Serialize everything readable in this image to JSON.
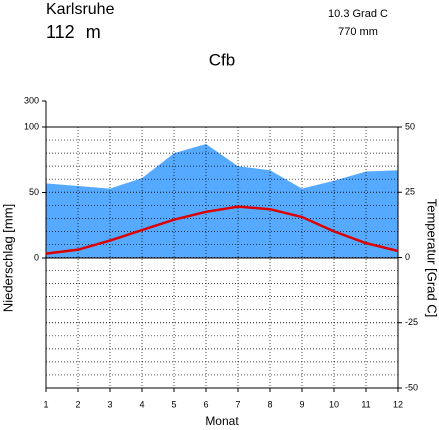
{
  "chart_data": {
    "type": "climate",
    "title": "Karlsruhe",
    "subtitle": "112 m",
    "annotations": [
      "10.3 Grad C",
      "770 mm",
      "Cfb"
    ],
    "x_label": "Monat",
    "y_label": "Niederschlag [mm]",
    "y2_label": "Temperatur [Grad C]",
    "x": [
      1,
      2,
      3,
      4,
      5,
      6,
      7,
      8,
      9,
      10,
      11,
      12
    ],
    "xlim": [
      1,
      12
    ],
    "xticks": [
      1,
      2,
      3,
      4,
      5,
      6,
      7,
      8,
      9,
      10,
      11,
      12
    ],
    "ylim": [
      0,
      300
    ],
    "yticks": [
      0,
      50,
      100,
      300
    ],
    "y2lim": [
      -50,
      50
    ],
    "y2ticks": [
      -50,
      -25,
      0,
      25,
      50
    ],
    "grid": true,
    "series": [
      {
        "type": "area",
        "color": "#55aaff",
        "values": [
          57,
          55,
          53,
          61,
          80,
          87,
          70,
          67,
          53,
          59,
          66,
          67
        ]
      },
      {
        "type": "line",
        "axis": "y2",
        "color": "#dd0000",
        "values": [
          1.5,
          3,
          6.5,
          10.5,
          14.5,
          17.5,
          19.5,
          18.5,
          15.5,
          10,
          5.5,
          2.5
        ]
      }
    ]
  }
}
